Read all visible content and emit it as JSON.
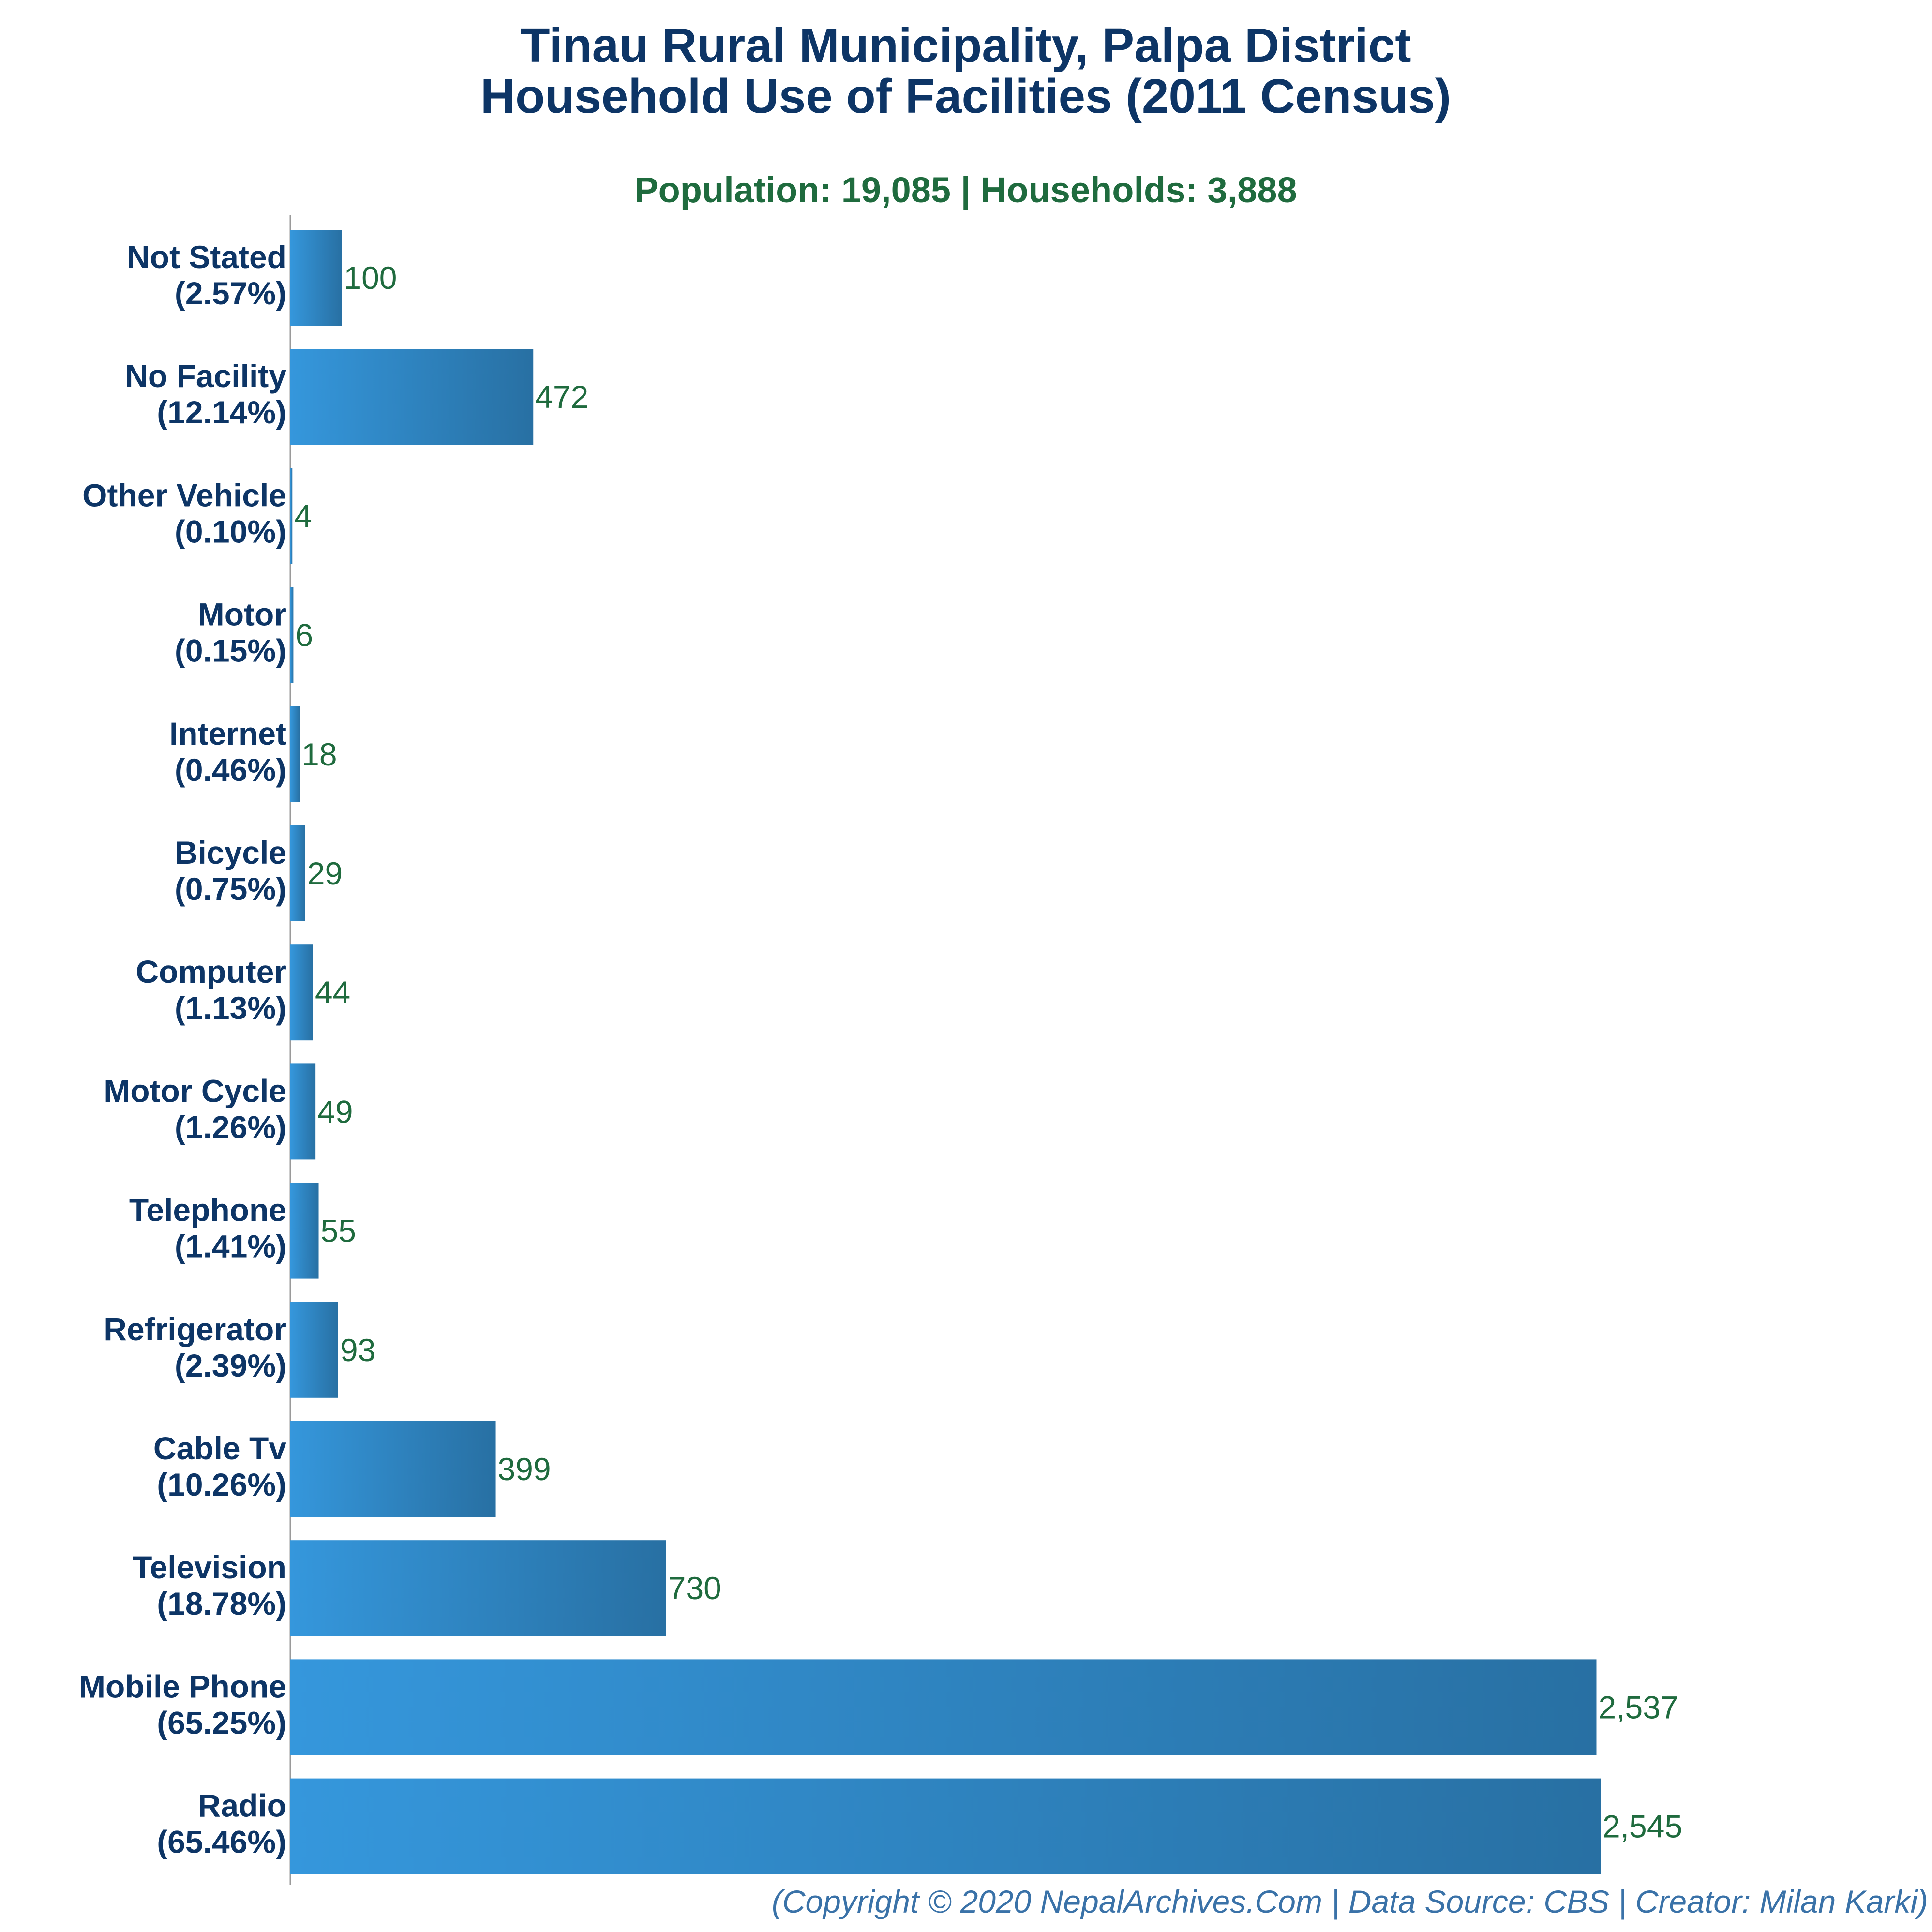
{
  "chart_data": {
    "type": "bar",
    "orientation": "horizontal",
    "title_line1": "Tinau Rural Municipality, Palpa District",
    "title_line2": "Household Use of Facilities (2011 Census)",
    "subtitle": "Population: 19,085 | Households: 3,888",
    "categories": [
      "Not Stated",
      "No Facility",
      "Other Vehicle",
      "Motor",
      "Internet",
      "Bicycle",
      "Computer",
      "Motor Cycle",
      "Telephone",
      "Refrigerator",
      "Cable Tv",
      "Television",
      "Mobile Phone",
      "Radio"
    ],
    "percent_labels": [
      "(2.57%)",
      "(12.14%)",
      "(0.10%)",
      "(0.15%)",
      "(0.46%)",
      "(0.75%)",
      "(1.13%)",
      "(1.26%)",
      "(1.41%)",
      "(2.39%)",
      "(10.26%)",
      "(18.78%)",
      "(65.25%)",
      "(65.46%)"
    ],
    "values": [
      100,
      472,
      4,
      6,
      18,
      29,
      44,
      49,
      55,
      93,
      399,
      730,
      2537,
      2545
    ],
    "value_labels": [
      "100",
      "472",
      "4",
      "6",
      "18",
      "29",
      "44",
      "49",
      "55",
      "93",
      "399",
      "730",
      "2,537",
      "2,545"
    ],
    "xlim": [
      0,
      2545
    ],
    "grid": false,
    "colors": {
      "bar_start": "#3597dc",
      "bar_end": "#2870a3",
      "title": "#0d3566",
      "value_text": "#1f6b3e",
      "footer": "#3a72a8"
    }
  },
  "footer": "(Copyright © 2020 NepalArchives.Com | Data Source: CBS | Creator: Milan Karki)"
}
